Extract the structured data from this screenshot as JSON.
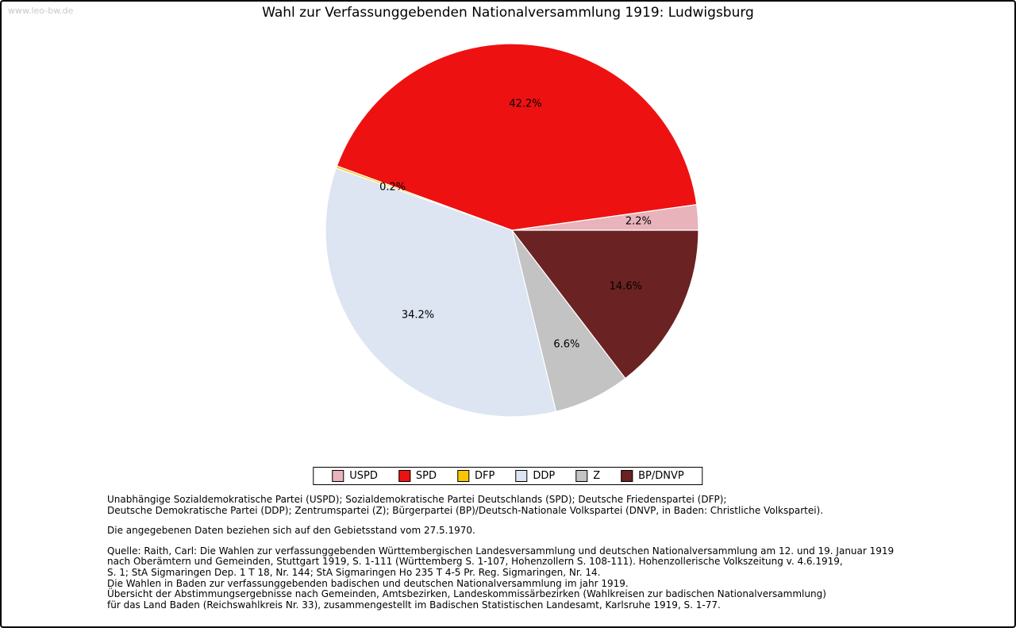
{
  "page": {
    "watermark": "www.leo-bw.de",
    "title": "Wahl zur Verfassunggebenden Nationalversammlung 1919: Ludwigsburg"
  },
  "chart_data": {
    "type": "pie",
    "title": "Wahl zur Verfassunggebenden Nationalversammlung 1919: Ludwigsburg",
    "unit": "%",
    "start_angle_deg": 0,
    "direction": "counterclockwise",
    "legend_position": "bottom",
    "slices": [
      {
        "label": "USPD",
        "value": 2.2,
        "display": "2.2%",
        "color": "#e8b3bb"
      },
      {
        "label": "SPD",
        "value": 42.2,
        "display": "42.2%",
        "color": "#ee1111"
      },
      {
        "label": "DFP",
        "value": 0.2,
        "display": "0.2%",
        "color": "#fdc500"
      },
      {
        "label": "DDP",
        "value": 34.2,
        "display": "34.2%",
        "color": "#dce5f1"
      },
      {
        "label": "Z",
        "value": 6.6,
        "display": "6.6%",
        "color": "#c3c3c3"
      },
      {
        "label": "BP/DNVP",
        "value": 14.6,
        "display": "14.6%",
        "color": "#6b2222"
      }
    ]
  },
  "footer": {
    "party_names": "Unabhängige Sozialdemokratische Partei (USPD); Sozialdemokratische Partei Deutschlands (SPD); Deutsche Friedenspartei (DFP);\nDeutsche Demokratische Partei (DDP); Zentrumspartei (Z); Bürgerpartei (BP)/Deutsch-Nationale Volkspartei (DNVP, in Baden: Christliche Volkspartei).",
    "note": "Die angegebenen Daten beziehen sich auf den Gebietsstand vom 27.5.1970.",
    "source": "Quelle: Raith, Carl: Die Wahlen zur verfassunggebenden Württembergischen Landesversammlung und deutschen Nationalversammlung am 12. und 19. Januar 1919\nnach Oberämtern und Gemeinden, Stuttgart 1919, S. 1-111 (Württemberg S. 1-107, Hohenzollern S. 108-111). Hohenzollerische Volkszeitung v. 4.6.1919,\nS. 1; StA Sigmaringen Dep. 1 T 18, Nr. 144; StA Sigmaringen Ho 235 T 4-5 Pr. Reg. Sigmaringen, Nr. 14.\nDie Wahlen in Baden zur verfassunggebenden badischen und deutschen Nationalversammlung im jahr 1919.\nÜbersicht der Abstimmungsergebnisse nach Gemeinden, Amtsbezirken, Landeskommissärbezirken (Wahlkreisen zur badischen Nationalversammlung)\nfür das Land Baden (Reichswahlkreis Nr. 33), zusammengestellt im Badischen Statistischen Landesamt, Karlsruhe 1919, S. 1-77."
  }
}
